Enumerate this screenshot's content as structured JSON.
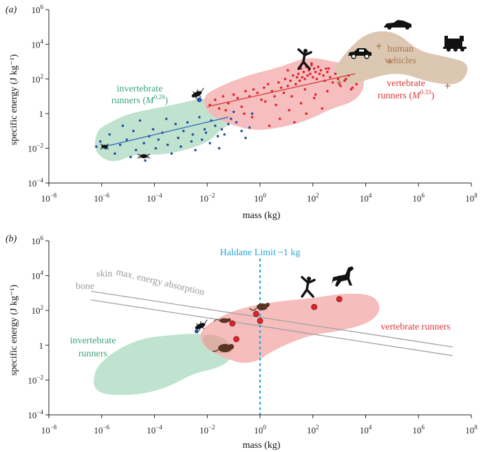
{
  "colors": {
    "invertebrate_region": "#bfe3cf",
    "vertebrate_region": "#f5b7b7",
    "vehicle_region": "#dcc7b2",
    "invertebrate_points": "#2a4fa3",
    "vertebrate_points": "#e0242b",
    "invertebrate_label": "#3aa37a",
    "vertebrate_label": "#d63a3a",
    "vehicle_label": "#a87b4b",
    "haldane": "#2aa6d6",
    "lines_grey": "#a0a0a0",
    "silhouette": "#111111",
    "mouse_body": "#5a3322"
  },
  "chart_data": [
    {
      "panel": "(a)",
      "type": "scatter",
      "xlabel": "mass (kg)",
      "ylabel": "specific energy (J kg⁻¹)",
      "x_scale": "log",
      "y_scale": "log",
      "xlim_exp": [
        -8,
        8
      ],
      "ylim_exp": [
        -4,
        6
      ],
      "x_ticks": [
        -8,
        -6,
        -4,
        -2,
        0,
        2,
        4,
        6,
        8
      ],
      "y_ticks": [
        -4,
        -2,
        0,
        2,
        4,
        6
      ],
      "grid": false,
      "regions": [
        {
          "name": "invertebrate runners",
          "label": "invertebrate",
          "label2": "runners (",
          "label_M": "M",
          "label_exp": "0.28",
          "label_close": ")"
        },
        {
          "name": "vertebrate runners",
          "label": "vertebrate",
          "label2": "runners (",
          "label_M": "M",
          "label_exp": "0.33",
          "label_close": ")"
        },
        {
          "name": "human vehicles",
          "label": "human",
          "label2": "vehicles"
        }
      ],
      "series": [
        {
          "group": "invertebrate runners",
          "log10_mass": [
            -6.2,
            -6.05,
            -5.85,
            -5.7,
            -5.5,
            -5.3,
            -5.2,
            -5.05,
            -4.9,
            -4.8,
            -4.7,
            -4.55,
            -4.4,
            -4.35,
            -4.2,
            -4.05,
            -3.95,
            -3.85,
            -3.7,
            -3.55,
            -3.5,
            -3.35,
            -3.2,
            -3.1,
            -3.0,
            -2.9,
            -2.75,
            -2.6,
            -2.55,
            -2.45,
            -2.3,
            -2.2,
            -2.1,
            -2.05,
            -1.9,
            -1.85,
            -1.7,
            -1.6,
            -1.55,
            -1.45,
            -1.35,
            -1.2,
            -1.1,
            -1.0,
            -0.9,
            -0.7,
            -0.55,
            -0.4,
            -0.3
          ],
          "log10_energy": [
            -1.9,
            -1.6,
            -2.0,
            -1.2,
            -2.3,
            -1.8,
            -0.7,
            -1.5,
            -2.5,
            -1.0,
            -2.1,
            -0.4,
            -1.7,
            -2.7,
            -1.3,
            -0.9,
            -2.0,
            -1.5,
            -1.1,
            -0.3,
            -1.8,
            -2.3,
            -0.6,
            -1.4,
            -1.9,
            -1.0,
            -0.5,
            -1.6,
            -1.2,
            -2.1,
            -0.2,
            -1.5,
            -0.9,
            -1.1,
            -1.7,
            -0.4,
            -0.7,
            -1.3,
            -2.0,
            -0.9,
            -1.2,
            -0.6,
            -0.3,
            0.1,
            -0.5,
            -1.0,
            -1.4,
            -0.8,
            0.0
          ],
          "fit": {
            "exponent": 0.28,
            "log10_mass_range": [
              -5.9,
              -1.2
            ],
            "log10_energy_range": [
              -1.9,
              -0.2
            ]
          }
        },
        {
          "group": "vertebrate runners",
          "log10_mass": [
            -1.9,
            -1.7,
            -1.55,
            -1.4,
            -1.2,
            -1.0,
            -0.85,
            -0.7,
            -0.55,
            -0.4,
            -0.25,
            -0.1,
            0.05,
            0.15,
            0.3,
            0.45,
            0.55,
            0.7,
            0.8,
            0.95,
            1.05,
            1.15,
            1.25,
            1.35,
            1.45,
            1.5,
            1.55,
            1.6,
            1.65,
            1.7,
            1.75,
            1.8,
            1.85,
            1.9,
            1.95,
            2.0,
            2.05,
            2.1,
            2.15,
            2.2,
            2.25,
            2.3,
            2.4,
            2.45,
            2.5,
            2.55,
            2.65,
            2.75,
            2.85,
            2.95,
            3.05,
            3.2,
            3.35,
            3.5,
            3.65,
            0.35,
            0.75,
            1.1,
            1.3,
            1.55,
            1.75,
            2.05,
            2.35,
            -0.3,
            0.6,
            0.9,
            1.2,
            1.7,
            2.1,
            2.55,
            3.0,
            3.45,
            -1.3,
            -0.6,
            0.2,
            1.05,
            1.4,
            1.95,
            2.6,
            3.25
          ],
          "log10_energy": [
            0.5,
            0.8,
            0.3,
            1.0,
            0.6,
            1.1,
            0.9,
            0.4,
            1.3,
            1.0,
            1.4,
            1.2,
            0.8,
            1.5,
            1.7,
            1.3,
            1.0,
            1.8,
            1.5,
            2.0,
            1.6,
            1.9,
            2.2,
            1.7,
            2.3,
            1.9,
            2.6,
            2.1,
            2.4,
            2.0,
            2.7,
            2.2,
            2.5,
            2.3,
            2.8,
            2.1,
            2.6,
            2.4,
            2.0,
            2.7,
            2.3,
            2.5,
            2.2,
            1.9,
            2.6,
            2.4,
            2.1,
            1.8,
            2.3,
            2.0,
            1.6,
            1.9,
            2.2,
            1.5,
            1.7,
            -0.7,
            -0.3,
            0.2,
            -0.5,
            0.6,
            0.0,
            0.9,
            0.3,
            -0.2,
            0.5,
            1.2,
            1.0,
            1.4,
            1.1,
            1.3,
            1.7,
            1.4,
            0.2,
            0.0,
            0.7,
            2.5,
            2.1,
            2.9,
            2.6,
            2.0
          ],
          "fit": {
            "exponent": 0.33,
            "log10_mass_range": [
              -2.0,
              3.6
            ],
            "log10_energy_range": [
              0.4,
              2.3
            ]
          }
        },
        {
          "group": "human vehicles",
          "log10_mass": [
            3.0,
            4.5,
            4.9,
            7.1
          ],
          "log10_energy": [
            1.8,
            3.9,
            3.0,
            1.6
          ]
        }
      ],
      "highlighted_point": {
        "log10_mass": -2.3,
        "log10_energy": 0.8
      }
    },
    {
      "panel": "(b)",
      "type": "scatter",
      "xlabel": "mass (kg)",
      "ylabel": "specific energy (J kg⁻¹)",
      "x_scale": "log",
      "y_scale": "log",
      "xlim_exp": [
        -8,
        8
      ],
      "ylim_exp": [
        -4,
        6
      ],
      "x_ticks": [
        -8,
        -6,
        -4,
        -2,
        0,
        2,
        4,
        6,
        8
      ],
      "y_ticks": [
        -4,
        -2,
        0,
        2,
        4,
        6
      ],
      "grid": false,
      "annotation": "max. energy absorption",
      "haldane_label": "Haldane Limit ~1 kg",
      "haldane_log10_mass": 0,
      "lines": [
        {
          "name": "skin",
          "log10_mass_range": [
            -6.4,
            7.3
          ],
          "log10_energy_range": [
            3.1,
            -0.1
          ]
        },
        {
          "name": "bone",
          "log10_mass_range": [
            -6.4,
            7.3
          ],
          "log10_energy_range": [
            2.6,
            -0.6
          ]
        }
      ],
      "regions": [
        {
          "name": "invertebrate runners",
          "label": "invertebrate",
          "label2": "runners"
        },
        {
          "name": "vertebrate runners",
          "label": "vertebrate runners"
        }
      ],
      "series": [
        {
          "group": "invertebrate runners",
          "log10_mass": [
            -2.4
          ],
          "log10_energy": [
            0.8
          ]
        },
        {
          "group": "vertebrate runners",
          "log10_mass": [
            -1.05,
            -0.9,
            -0.15,
            0.0,
            2.05,
            3.0
          ],
          "log10_energy": [
            1.25,
            0.35,
            1.8,
            1.4,
            2.2,
            2.65
          ]
        }
      ]
    }
  ]
}
